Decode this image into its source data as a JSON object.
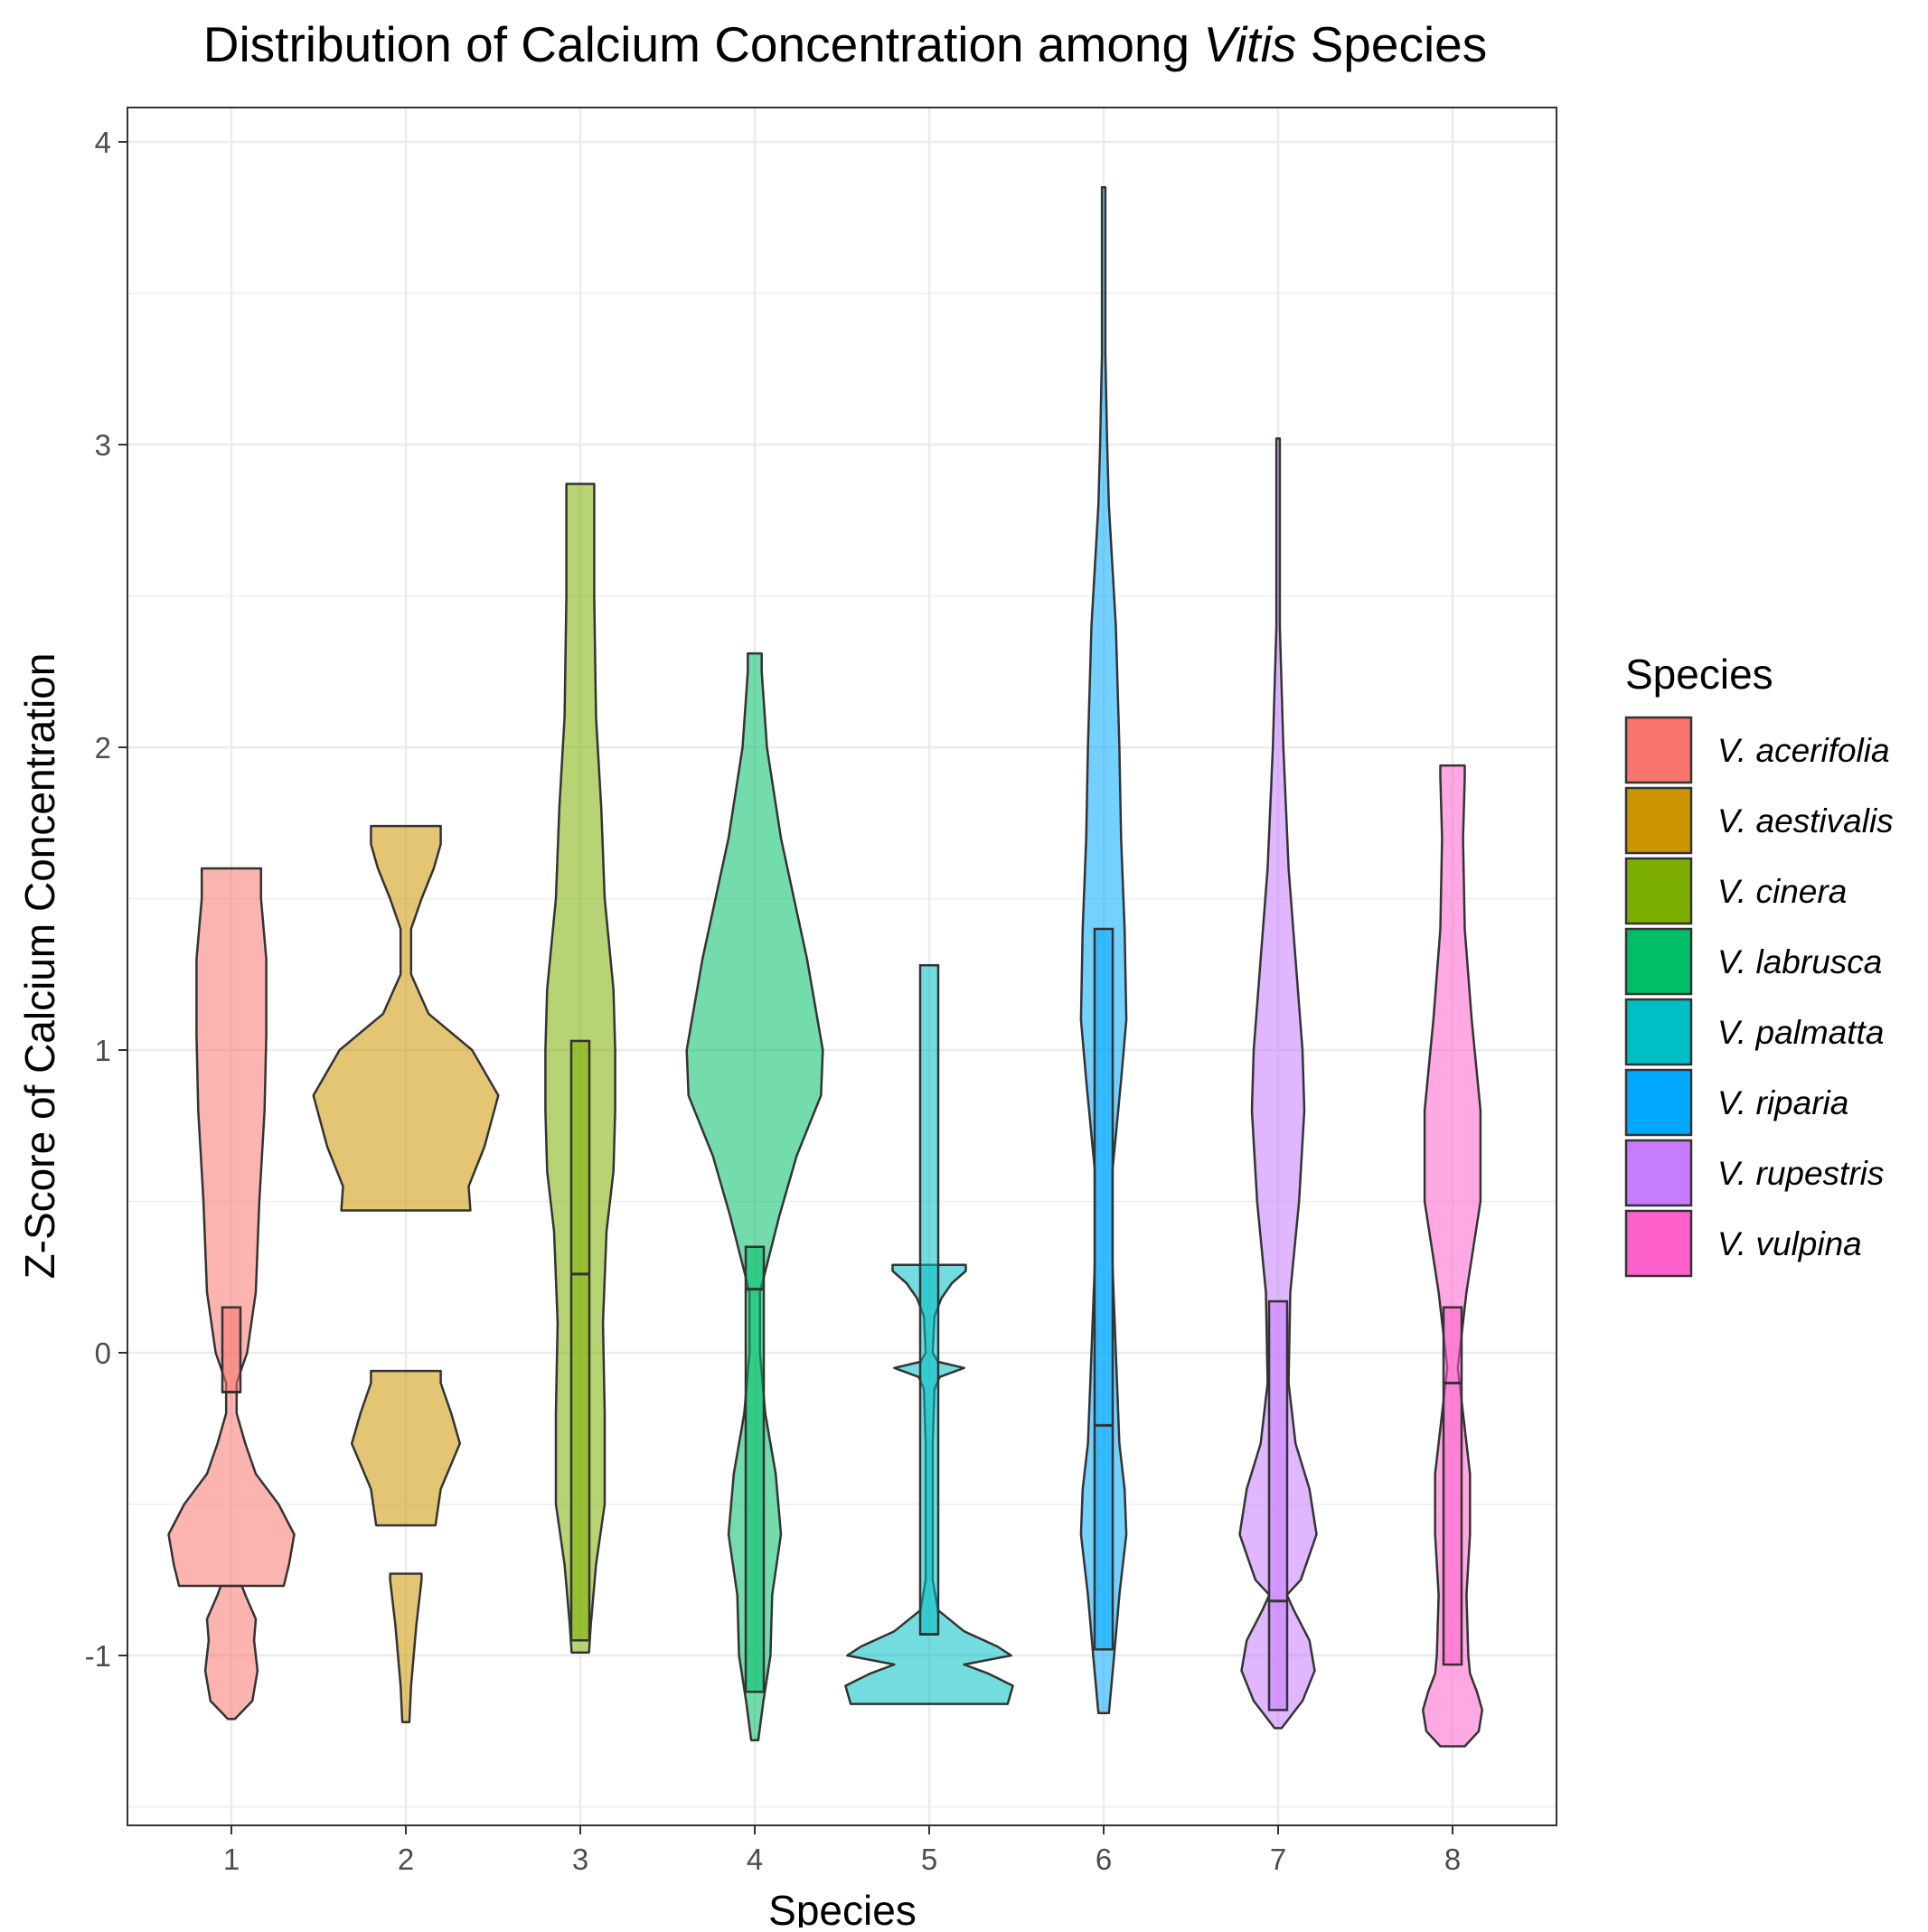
{
  "chart_data": {
    "type": "violin",
    "title_parts": [
      {
        "text": "Distribution of Calcium Concentration among ",
        "italic": false
      },
      {
        "text": "Vitis",
        "italic": true
      },
      {
        "text": " Species",
        "italic": false
      }
    ],
    "xlabel": "Species",
    "ylabel": "Z-Score of Calcium Concentration",
    "categories": [
      "1",
      "2",
      "3",
      "4",
      "5",
      "6",
      "7",
      "8"
    ],
    "y_ticks": [
      -1,
      0,
      1,
      2,
      3,
      4
    ],
    "y_tick_labels": [
      "-1",
      "0",
      "1",
      "2",
      "3",
      "4"
    ],
    "ylim": [
      -1.55,
      4.1
    ],
    "grid": true,
    "legend": {
      "title": "Species",
      "position": "right",
      "items": [
        {
          "label": "V. acerifolia",
          "color": "#F8766D"
        },
        {
          "label": "V. aestivalis",
          "color": "#CD9600"
        },
        {
          "label": "V. cinera",
          "color": "#7CAE00"
        },
        {
          "label": "V. labrusca",
          "color": "#00BE67"
        },
        {
          "label": "V. palmatta",
          "color": "#00BFC4"
        },
        {
          "label": "V. riparia",
          "color": "#00A9FF"
        },
        {
          "label": "V. rupestris",
          "color": "#C77CFF"
        },
        {
          "label": "V. vulpina",
          "color": "#FF61CC"
        }
      ]
    },
    "series": [
      {
        "x": 1,
        "color": "#F8766D",
        "violins": [
          [
            [
              -1.21,
              0.02
            ],
            [
              -1.15,
              0.12
            ],
            [
              -1.05,
              0.15
            ],
            [
              -0.95,
              0.13
            ],
            [
              -0.88,
              0.14
            ],
            [
              -0.8,
              0.08
            ],
            [
              -0.77,
              0.06
            ]
          ],
          [
            [
              -0.77,
              0.3
            ],
            [
              -0.7,
              0.33
            ],
            [
              -0.6,
              0.36
            ],
            [
              -0.5,
              0.27
            ],
            [
              -0.4,
              0.14
            ],
            [
              -0.3,
              0.08
            ],
            [
              -0.2,
              0.03
            ],
            [
              -0.1,
              0.03
            ],
            [
              0.0,
              0.09
            ],
            [
              0.2,
              0.14
            ],
            [
              0.5,
              0.16
            ],
            [
              0.8,
              0.19
            ],
            [
              1.05,
              0.2
            ],
            [
              1.3,
              0.2
            ],
            [
              1.5,
              0.17
            ],
            [
              1.6,
              0.17
            ]
          ]
        ]
      },
      {
        "x": 2,
        "color": "#CD9600",
        "violins": [
          [
            [
              -1.22,
              0.02
            ],
            [
              -1.1,
              0.03
            ],
            [
              -0.9,
              0.06
            ],
            [
              -0.75,
              0.09
            ],
            [
              -0.73,
              0.09
            ]
          ],
          [
            [
              -0.57,
              0.17
            ],
            [
              -0.45,
              0.2
            ],
            [
              -0.3,
              0.31
            ],
            [
              -0.2,
              0.26
            ],
            [
              -0.1,
              0.2
            ],
            [
              -0.06,
              0.2
            ]
          ],
          [
            [
              0.47,
              0.37
            ],
            [
              0.55,
              0.36
            ],
            [
              0.68,
              0.45
            ],
            [
              0.85,
              0.53
            ],
            [
              1.0,
              0.38
            ],
            [
              1.12,
              0.13
            ],
            [
              1.25,
              0.03
            ],
            [
              1.4,
              0.03
            ],
            [
              1.5,
              0.09
            ],
            [
              1.6,
              0.16
            ],
            [
              1.68,
              0.2
            ],
            [
              1.74,
              0.2
            ]
          ]
        ]
      },
      {
        "x": 3,
        "color": "#7CAE00",
        "violins": [
          [
            [
              -0.99,
              0.05
            ],
            [
              -0.9,
              0.06
            ],
            [
              -0.7,
              0.09
            ],
            [
              -0.5,
              0.14
            ],
            [
              -0.2,
              0.14
            ],
            [
              0.1,
              0.13
            ],
            [
              0.4,
              0.15
            ],
            [
              0.6,
              0.19
            ],
            [
              0.8,
              0.2
            ],
            [
              1.0,
              0.2
            ],
            [
              1.2,
              0.19
            ],
            [
              1.5,
              0.14
            ],
            [
              1.8,
              0.12
            ],
            [
              2.1,
              0.09
            ],
            [
              2.5,
              0.08
            ],
            [
              2.8,
              0.08
            ],
            [
              2.87,
              0.08
            ]
          ]
        ]
      },
      {
        "x": 4,
        "color": "#00BE67",
        "violins": [
          [
            [
              -1.28,
              0.02
            ],
            [
              -1.15,
              0.05
            ],
            [
              -1.0,
              0.09
            ],
            [
              -0.8,
              0.1
            ],
            [
              -0.6,
              0.15
            ],
            [
              -0.4,
              0.12
            ],
            [
              -0.2,
              0.06
            ],
            [
              0.0,
              0.03
            ],
            [
              0.2,
              0.03
            ],
            [
              0.45,
              0.14
            ],
            [
              0.65,
              0.24
            ],
            [
              0.85,
              0.38
            ],
            [
              1.0,
              0.39
            ],
            [
              1.3,
              0.3
            ],
            [
              1.7,
              0.15
            ],
            [
              2.0,
              0.07
            ],
            [
              2.25,
              0.04
            ],
            [
              2.31,
              0.04
            ]
          ]
        ]
      },
      {
        "x": 5,
        "color": "#00BFC4",
        "violins": [
          [
            [
              -1.16,
              0.45
            ],
            [
              -1.1,
              0.48
            ],
            [
              -1.06,
              0.34
            ],
            [
              -1.03,
              0.2
            ],
            [
              -1.0,
              0.47
            ],
            [
              -0.97,
              0.39
            ],
            [
              -0.92,
              0.2
            ],
            [
              -0.85,
              0.05
            ],
            [
              -0.75,
              0.02
            ],
            [
              -0.6,
              0.02
            ],
            [
              -0.3,
              0.02
            ],
            [
              -0.12,
              0.03
            ],
            [
              -0.08,
              0.06
            ],
            [
              -0.05,
              0.2
            ],
            [
              -0.03,
              0.05
            ],
            [
              0.0,
              0.02
            ],
            [
              0.12,
              0.03
            ],
            [
              0.18,
              0.07
            ],
            [
              0.23,
              0.13
            ],
            [
              0.27,
              0.21
            ],
            [
              0.29,
              0.21
            ]
          ]
        ]
      },
      {
        "x": 6,
        "color": "#00A9FF",
        "violins": [
          [
            [
              -1.19,
              0.03
            ],
            [
              -1.0,
              0.06
            ],
            [
              -0.8,
              0.09
            ],
            [
              -0.6,
              0.13
            ],
            [
              -0.45,
              0.12
            ],
            [
              -0.3,
              0.09
            ],
            [
              0.0,
              0.07
            ],
            [
              0.3,
              0.05
            ],
            [
              0.6,
              0.05
            ],
            [
              0.9,
              0.1
            ],
            [
              1.1,
              0.13
            ],
            [
              1.4,
              0.12
            ],
            [
              1.7,
              0.1
            ],
            [
              2.0,
              0.09
            ],
            [
              2.4,
              0.07
            ],
            [
              2.8,
              0.03
            ],
            [
              3.0,
              0.02
            ],
            [
              3.3,
              0.01
            ],
            [
              3.6,
              0.01
            ],
            [
              3.85,
              0.01
            ]
          ]
        ]
      },
      {
        "x": 7,
        "color": "#C77CFF",
        "violins": [
          [
            [
              -1.24,
              0.02
            ],
            [
              -1.15,
              0.14
            ],
            [
              -1.05,
              0.21
            ],
            [
              -0.95,
              0.18
            ],
            [
              -0.85,
              0.09
            ],
            [
              -0.8,
              0.05
            ],
            [
              -0.75,
              0.13
            ],
            [
              -0.6,
              0.22
            ],
            [
              -0.45,
              0.18
            ],
            [
              -0.3,
              0.1
            ],
            [
              -0.1,
              0.06
            ],
            [
              0.2,
              0.07
            ],
            [
              0.5,
              0.12
            ],
            [
              0.8,
              0.15
            ],
            [
              1.0,
              0.14
            ],
            [
              1.3,
              0.1
            ],
            [
              1.6,
              0.06
            ],
            [
              2.0,
              0.03
            ],
            [
              2.4,
              0.01
            ],
            [
              2.8,
              0.01
            ],
            [
              3.02,
              0.01
            ]
          ]
        ]
      },
      {
        "x": 8,
        "color": "#FF61CC",
        "violins": [
          [
            [
              -1.3,
              0.07
            ],
            [
              -1.25,
              0.15
            ],
            [
              -1.18,
              0.17
            ],
            [
              -1.12,
              0.14
            ],
            [
              -1.06,
              0.1
            ],
            [
              -1.0,
              0.09
            ],
            [
              -0.8,
              0.08
            ],
            [
              -0.6,
              0.1
            ],
            [
              -0.4,
              0.1
            ],
            [
              -0.2,
              0.06
            ],
            [
              -0.05,
              0.03
            ],
            [
              0.2,
              0.08
            ],
            [
              0.5,
              0.16
            ],
            [
              0.8,
              0.16
            ],
            [
              1.1,
              0.11
            ],
            [
              1.4,
              0.07
            ],
            [
              1.7,
              0.06
            ],
            [
              1.9,
              0.07
            ],
            [
              1.94,
              0.07
            ]
          ]
        ]
      }
    ],
    "boxes": [
      {
        "x": 1,
        "q1": -0.13,
        "median": -0.13,
        "q3": 0.15
      },
      {
        "x": 3,
        "q1": -0.95,
        "median": 0.26,
        "q3": 1.03
      },
      {
        "x": 4,
        "q1": -1.12,
        "median": 0.21,
        "q3": 0.35
      },
      {
        "x": 5,
        "q1": -0.93,
        "median": -0.93,
        "q3": 1.28
      },
      {
        "x": 6,
        "q1": -0.98,
        "median": -0.24,
        "q3": 1.4
      },
      {
        "x": 7,
        "q1": -1.18,
        "median": -0.82,
        "q3": 0.17
      },
      {
        "x": 8,
        "q1": -1.03,
        "median": -0.1,
        "q3": 0.15
      }
    ]
  }
}
